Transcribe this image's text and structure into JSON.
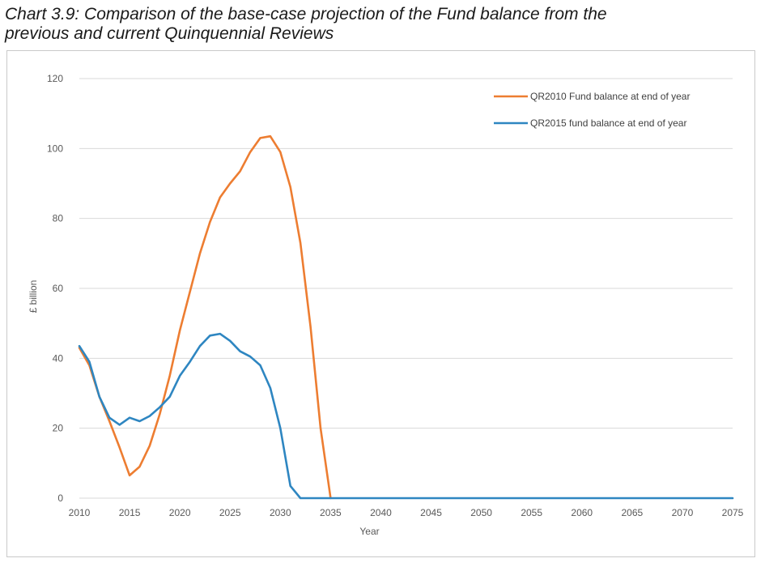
{
  "title": "Chart 3.9: Comparison of the base-case projection of the Fund balance from the previous and current Quinquennial Reviews",
  "title_line1": "Chart 3.9: Comparison of the base-case projection of the Fund balance from the",
  "title_line2": "previous and current Quinquennial Reviews",
  "chart_data": {
    "type": "line",
    "title": "Chart 3.9: Comparison of the base-case projection of the Fund balance from the previous and current Quinquennial Reviews",
    "xlabel": "Year",
    "ylabel": "£ billion",
    "xlim": [
      2010,
      2075
    ],
    "ylim": [
      0,
      120
    ],
    "xticks": [
      2010,
      2015,
      2020,
      2025,
      2030,
      2035,
      2040,
      2045,
      2050,
      2055,
      2060,
      2065,
      2070,
      2075
    ],
    "yticks": [
      0,
      20,
      40,
      60,
      80,
      100,
      120
    ],
    "grid": "horizontal",
    "legend_position": "top-right",
    "series": [
      {
        "name": "QR2010 Fund balance at end of year",
        "color": "#ED7D31",
        "x": [
          2010,
          2011,
          2012,
          2013,
          2014,
          2015,
          2016,
          2017,
          2018,
          2019,
          2020,
          2021,
          2022,
          2023,
          2024,
          2025,
          2026,
          2027,
          2028,
          2029,
          2030,
          2031,
          2032,
          2033,
          2034,
          2035
        ],
        "values": [
          43,
          38,
          29,
          22,
          14.5,
          6.5,
          9,
          15,
          24,
          35,
          48,
          59,
          70,
          79,
          86,
          90,
          93.5,
          99,
          103,
          103.5,
          99,
          89,
          73,
          49,
          20,
          0
        ]
      },
      {
        "name": "QR2015 fund balance at end of year",
        "color": "#2E86C1",
        "x": [
          2010,
          2011,
          2012,
          2013,
          2014,
          2015,
          2016,
          2017,
          2018,
          2019,
          2020,
          2021,
          2022,
          2023,
          2024,
          2025,
          2026,
          2027,
          2028,
          2029,
          2030,
          2031,
          2032,
          2033,
          2075
        ],
        "values": [
          43.5,
          39,
          29,
          23,
          21,
          23,
          22,
          23.5,
          26,
          29,
          35,
          39,
          43.5,
          46.5,
          47,
          45,
          42,
          40.5,
          38,
          31.5,
          20,
          3.5,
          0,
          0,
          0
        ]
      }
    ]
  }
}
